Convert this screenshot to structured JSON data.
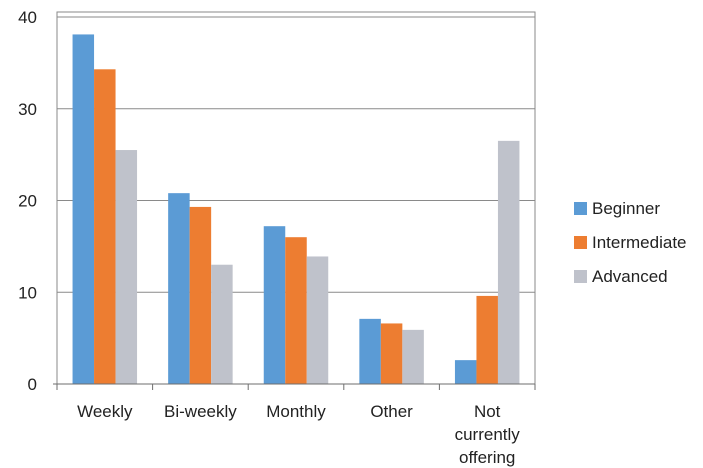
{
  "chart_data": {
    "type": "bar",
    "categories": [
      [
        "Weekly"
      ],
      [
        "Bi-weekly"
      ],
      [
        "Monthly"
      ],
      [
        "Other"
      ],
      [
        "Not",
        "currently",
        "offering"
      ]
    ],
    "series": [
      {
        "name": "Beginner",
        "color": "#5b9bd5",
        "values": [
          38.1,
          20.8,
          17.2,
          7.1,
          2.6
        ]
      },
      {
        "name": "Intermediate",
        "color": "#ed7d31",
        "values": [
          34.3,
          19.3,
          16.0,
          6.6,
          9.6
        ]
      },
      {
        "name": "Advanced",
        "color": "#bfc2cb",
        "values": [
          25.5,
          13.0,
          13.9,
          5.9,
          26.5
        ]
      }
    ],
    "yticks": [
      "0",
      "10",
      "20",
      "30",
      "40"
    ],
    "ylim": [
      0,
      40
    ],
    "grid": true,
    "legend_position": "right"
  }
}
